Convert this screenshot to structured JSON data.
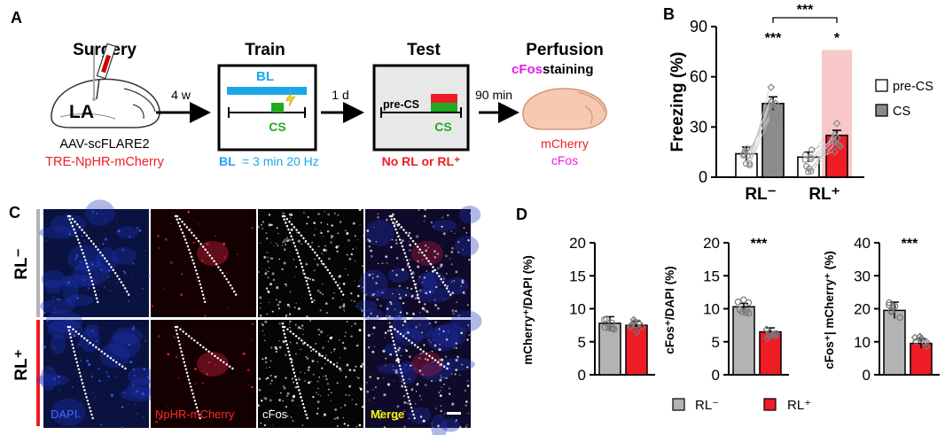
{
  "panels": {
    "a": "A",
    "b": "B",
    "c": "C",
    "d": "D"
  },
  "panelA": {
    "steps": [
      {
        "title": "Surgery",
        "line1": "AAV-scFLARE2",
        "line2": "TRE-NpHR-mCherry",
        "brain_label": "LA"
      },
      {
        "title": "Train",
        "box_label": "BL",
        "cs_label": "CS",
        "bl_note_key": "BL",
        "bl_note_value": "= 3 min 20 Hz"
      },
      {
        "title": "Test",
        "precs_label": "pre-CS",
        "cs_label": "CS",
        "note": "No RL or RL⁺"
      },
      {
        "title": "Perfusion",
        "staining_a": "cFos",
        "staining_b": " staining",
        "marker1": "mCherry",
        "marker2": "cFos"
      }
    ],
    "arrows": [
      "4 w",
      "1 d",
      "90 min"
    ]
  },
  "panelC": {
    "row_labels": [
      "RL⁻",
      "RL⁺"
    ],
    "channels": [
      {
        "name": "DAPI",
        "color": "#3d6bff"
      },
      {
        "name": "NpHR-mCherry",
        "color": "#ff2a2a"
      },
      {
        "name": "cFos",
        "color": "#ffffff"
      },
      {
        "name": "Merge",
        "color": "#f4f400"
      }
    ]
  },
  "colors": {
    "rl_minus": "#b3b3b5",
    "rl_plus": "#ee1c25",
    "pre_cs": "#ffffff",
    "cs": "#8c8c8c",
    "highlight": "#f8c8c8"
  },
  "legendB": [
    "pre-CS",
    "CS"
  ],
  "legendD": [
    "RL⁻",
    "RL⁺"
  ],
  "chart_data": [
    {
      "id": "B",
      "type": "bar",
      "ylabel": "Freezing (%)",
      "ylim": [
        0,
        90
      ],
      "yticks": [
        0,
        30,
        60,
        90
      ],
      "categories": [
        "RL⁻",
        "RL⁺"
      ],
      "series": [
        {
          "name": "pre-CS",
          "values": [
            14,
            12
          ]
        },
        {
          "name": "CS",
          "values": [
            44,
            25
          ]
        }
      ],
      "errors": [
        [
          4,
          3
        ],
        [
          4,
          3
        ]
      ],
      "annotations": [
        "***",
        "*",
        "***"
      ]
    },
    {
      "id": "D1",
      "type": "bar",
      "ylabel": "mCherry⁺/DAPI (%)",
      "ylim": [
        0,
        20
      ],
      "yticks": [
        0,
        5,
        10,
        15,
        20
      ],
      "categories": [
        "RL⁻",
        "RL⁺"
      ],
      "values": [
        7.8,
        7.5
      ],
      "errors": [
        1.0,
        0.6
      ],
      "annotation": ""
    },
    {
      "id": "D2",
      "type": "bar",
      "ylabel": "cFos⁺/DAPI (%)",
      "ylim": [
        0,
        20
      ],
      "yticks": [
        0,
        5,
        10,
        15,
        20
      ],
      "categories": [
        "RL⁻",
        "RL⁺"
      ],
      "values": [
        10.3,
        6.5
      ],
      "errors": [
        0.5,
        0.6
      ],
      "annotation": "***"
    },
    {
      "id": "D3",
      "type": "bar",
      "ylabel": "cFos⁺| mCherry⁺ (%)",
      "ylim": [
        0,
        40
      ],
      "yticks": [
        0,
        10,
        20,
        30,
        40
      ],
      "categories": [
        "RL⁻",
        "RL⁺"
      ],
      "values": [
        19.5,
        9.5
      ],
      "errors": [
        2.5,
        1.5
      ],
      "annotation": "***"
    }
  ]
}
